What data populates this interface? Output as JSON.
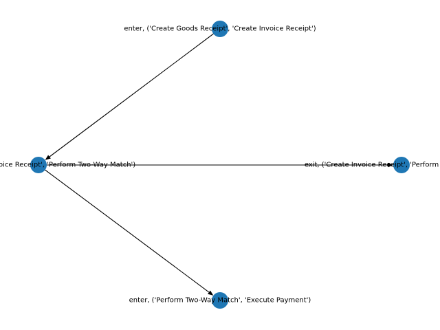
{
  "colors": {
    "node_fill": "#1f77b4",
    "edge": "#000000",
    "background": "#ffffff",
    "label": "#000000"
  },
  "nodes": [
    {
      "id": "n1",
      "label": "enter, ('Create Goods Receipt', 'Create Invoice Receipt')"
    },
    {
      "id": "n2",
      "label": "exit, ('Create Invoice Receipt', 'Perform Two-Way Match')"
    },
    {
      "id": "n3",
      "label": "exit, ('Create Invoice Receipt', 'Perform Two-Way Match')"
    },
    {
      "id": "n4",
      "label": "enter, ('Perform Two-Way Match', 'Execute Payment')"
    }
  ],
  "edges": [
    {
      "from": "n1",
      "to": "n2"
    },
    {
      "from": "n2",
      "to": "n3"
    },
    {
      "from": "n2",
      "to": "n4"
    }
  ]
}
